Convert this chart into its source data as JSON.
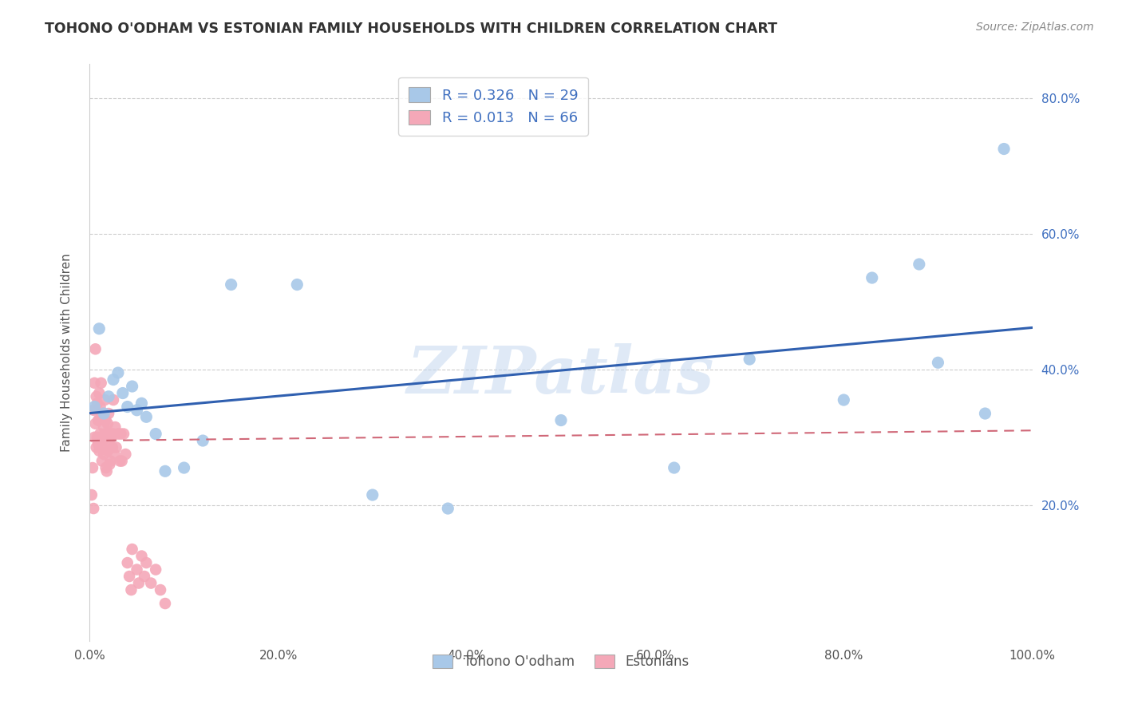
{
  "title": "TOHONO O'ODHAM VS ESTONIAN FAMILY HOUSEHOLDS WITH CHILDREN CORRELATION CHART",
  "source": "Source: ZipAtlas.com",
  "ylabel": "Family Households with Children",
  "blue_color": "#a8c8e8",
  "pink_color": "#f4a8b8",
  "blue_line_color": "#3060b0",
  "pink_line_color": "#d06878",
  "watermark": "ZIPatlas",
  "background_color": "#ffffff",
  "grid_color": "#cccccc",
  "blue_points": [
    [
      0.005,
      0.345
    ],
    [
      0.01,
      0.46
    ],
    [
      0.015,
      0.335
    ],
    [
      0.02,
      0.36
    ],
    [
      0.025,
      0.385
    ],
    [
      0.03,
      0.395
    ],
    [
      0.035,
      0.365
    ],
    [
      0.04,
      0.345
    ],
    [
      0.045,
      0.375
    ],
    [
      0.05,
      0.34
    ],
    [
      0.055,
      0.35
    ],
    [
      0.06,
      0.33
    ],
    [
      0.07,
      0.305
    ],
    [
      0.08,
      0.25
    ],
    [
      0.1,
      0.255
    ],
    [
      0.12,
      0.295
    ],
    [
      0.15,
      0.525
    ],
    [
      0.22,
      0.525
    ],
    [
      0.3,
      0.215
    ],
    [
      0.38,
      0.195
    ],
    [
      0.5,
      0.325
    ],
    [
      0.62,
      0.255
    ],
    [
      0.7,
      0.415
    ],
    [
      0.8,
      0.355
    ],
    [
      0.83,
      0.535
    ],
    [
      0.88,
      0.555
    ],
    [
      0.9,
      0.41
    ],
    [
      0.95,
      0.335
    ],
    [
      0.97,
      0.725
    ]
  ],
  "pink_points": [
    [
      0.002,
      0.215
    ],
    [
      0.003,
      0.255
    ],
    [
      0.004,
      0.195
    ],
    [
      0.004,
      0.34
    ],
    [
      0.005,
      0.3
    ],
    [
      0.005,
      0.38
    ],
    [
      0.006,
      0.32
    ],
    [
      0.006,
      0.43
    ],
    [
      0.007,
      0.285
    ],
    [
      0.007,
      0.36
    ],
    [
      0.008,
      0.3
    ],
    [
      0.008,
      0.35
    ],
    [
      0.009,
      0.325
    ],
    [
      0.009,
      0.29
    ],
    [
      0.01,
      0.365
    ],
    [
      0.01,
      0.325
    ],
    [
      0.01,
      0.28
    ],
    [
      0.011,
      0.345
    ],
    [
      0.011,
      0.305
    ],
    [
      0.012,
      0.38
    ],
    [
      0.012,
      0.33
    ],
    [
      0.013,
      0.285
    ],
    [
      0.013,
      0.265
    ],
    [
      0.014,
      0.335
    ],
    [
      0.014,
      0.295
    ],
    [
      0.015,
      0.315
    ],
    [
      0.015,
      0.275
    ],
    [
      0.016,
      0.355
    ],
    [
      0.016,
      0.305
    ],
    [
      0.017,
      0.325
    ],
    [
      0.017,
      0.255
    ],
    [
      0.018,
      0.3
    ],
    [
      0.018,
      0.25
    ],
    [
      0.019,
      0.32
    ],
    [
      0.019,
      0.28
    ],
    [
      0.02,
      0.335
    ],
    [
      0.02,
      0.295
    ],
    [
      0.021,
      0.26
    ],
    [
      0.022,
      0.305
    ],
    [
      0.022,
      0.265
    ],
    [
      0.023,
      0.3
    ],
    [
      0.024,
      0.285
    ],
    [
      0.025,
      0.355
    ],
    [
      0.025,
      0.305
    ],
    [
      0.026,
      0.275
    ],
    [
      0.027,
      0.315
    ],
    [
      0.028,
      0.285
    ],
    [
      0.03,
      0.305
    ],
    [
      0.032,
      0.265
    ],
    [
      0.033,
      0.305
    ],
    [
      0.034,
      0.265
    ],
    [
      0.036,
      0.305
    ],
    [
      0.038,
      0.275
    ],
    [
      0.04,
      0.115
    ],
    [
      0.042,
      0.095
    ],
    [
      0.044,
      0.075
    ],
    [
      0.045,
      0.135
    ],
    [
      0.05,
      0.105
    ],
    [
      0.052,
      0.085
    ],
    [
      0.055,
      0.125
    ],
    [
      0.058,
      0.095
    ],
    [
      0.06,
      0.115
    ],
    [
      0.065,
      0.085
    ],
    [
      0.07,
      0.105
    ],
    [
      0.075,
      0.075
    ],
    [
      0.08,
      0.055
    ]
  ]
}
